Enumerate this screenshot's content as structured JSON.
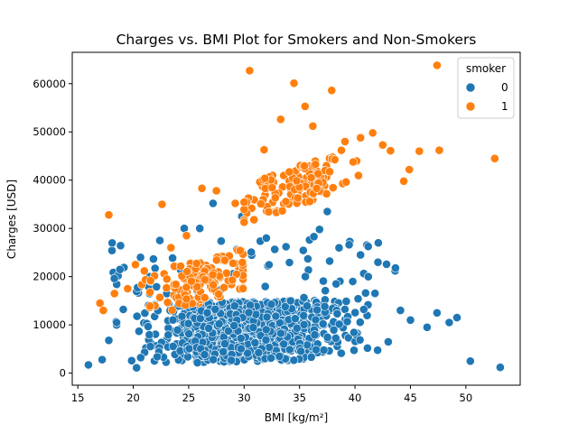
{
  "chart_data": {
    "type": "scatter",
    "title": "Charges vs. BMI Plot for Smokers and Non-Smokers",
    "xlabel": "BMI [kg/m²]",
    "ylabel": "Charges [USD]",
    "xlim": [
      14.5,
      54.9
    ],
    "ylim": [
      -2500,
      66500
    ],
    "xticks": [
      15,
      20,
      25,
      30,
      35,
      40,
      45,
      50
    ],
    "yticks": [
      0,
      10000,
      20000,
      30000,
      40000,
      50000,
      60000
    ],
    "grid": false,
    "legend": {
      "title": "smoker",
      "placement": "top-right"
    },
    "series": [
      {
        "name": "0",
        "color": "#1f77b4",
        "description": "non-smokers: dense band ~1000–15000 across BMI 16–53, sparse outliers up to ~35000",
        "points": [
          [
            15.96,
            1700
          ],
          [
            17.2,
            2800
          ],
          [
            17.8,
            6800
          ],
          [
            18.5,
            10500
          ],
          [
            18.8,
            21500
          ],
          [
            19.1,
            13200
          ],
          [
            20.3,
            1100
          ],
          [
            21.5,
            20000
          ],
          [
            22.4,
            27500
          ],
          [
            24.6,
            30000
          ],
          [
            26.0,
            30000
          ],
          [
            27.2,
            35200
          ],
          [
            29.8,
            32500
          ],
          [
            32.0,
            28000
          ],
          [
            35.9,
            27600
          ],
          [
            36.3,
            28300
          ],
          [
            36.8,
            29800
          ],
          [
            37.5,
            33500
          ],
          [
            38.3,
            18500
          ],
          [
            39.8,
            19000
          ],
          [
            40.5,
            24500
          ],
          [
            41.2,
            20000
          ],
          [
            42.1,
            27000
          ],
          [
            43.0,
            6500
          ],
          [
            44.1,
            13000
          ],
          [
            45.0,
            11000
          ],
          [
            46.5,
            9500
          ],
          [
            47.4,
            12500
          ],
          [
            48.5,
            10500
          ],
          [
            49.2,
            11500
          ],
          [
            50.4,
            2500
          ],
          [
            53.1,
            1200
          ]
        ]
      },
      {
        "name": "1",
        "color": "#ff7f0e",
        "description": "smokers: cluster ~13000–38000 for BMI 17–30, jump to ~33000–50000 for BMI 30–53",
        "points": [
          [
            17.0,
            14500
          ],
          [
            17.3,
            13000
          ],
          [
            17.8,
            32800
          ],
          [
            18.3,
            16500
          ],
          [
            19.5,
            17500
          ],
          [
            20.2,
            22500
          ],
          [
            21.0,
            21200
          ],
          [
            22.6,
            35000
          ],
          [
            23.4,
            26000
          ],
          [
            24.8,
            28500
          ],
          [
            26.2,
            38300
          ],
          [
            27.5,
            37800
          ],
          [
            29.2,
            35200
          ],
          [
            30.5,
            62700
          ],
          [
            31.8,
            46300
          ],
          [
            33.3,
            52600
          ],
          [
            34.5,
            60100
          ],
          [
            35.5,
            55300
          ],
          [
            36.2,
            51200
          ],
          [
            37.9,
            58600
          ],
          [
            39.1,
            48000
          ],
          [
            40.5,
            48800
          ],
          [
            41.6,
            49800
          ],
          [
            42.5,
            47300
          ],
          [
            43.2,
            46100
          ],
          [
            44.4,
            39800
          ],
          [
            44.9,
            42200
          ],
          [
            45.8,
            46000
          ],
          [
            47.4,
            63800
          ],
          [
            47.6,
            46200
          ],
          [
            52.6,
            44500
          ]
        ]
      }
    ]
  }
}
